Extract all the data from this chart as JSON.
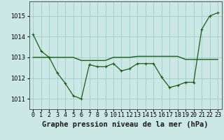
{
  "background_color": "#cce8e4",
  "grid_color": "#9ecec8",
  "line_color": "#1a5c1a",
  "marker_color": "#1a5c1a",
  "title": "Graphe pression niveau de la mer (hPa)",
  "xlim": [
    -0.5,
    23.5
  ],
  "ylim": [
    1010.5,
    1015.7
  ],
  "yticks": [
    1011,
    1012,
    1013,
    1014,
    1015
  ],
  "xtick_labels": [
    "0",
    "1",
    "2",
    "3",
    "4",
    "5",
    "6",
    "7",
    "8",
    "9",
    "10",
    "11",
    "12",
    "13",
    "14",
    "15",
    "16",
    "17",
    "18",
    "19",
    "20",
    "21",
    "22",
    "23"
  ],
  "series1_x": [
    0,
    1,
    2,
    3,
    4,
    5,
    6,
    7,
    8,
    9,
    10,
    11,
    12,
    13,
    14,
    15,
    16,
    17,
    18,
    19,
    20,
    21,
    22,
    23
  ],
  "series1_y": [
    1014.1,
    1013.3,
    1013.0,
    1012.25,
    1011.75,
    1011.15,
    1011.0,
    1012.65,
    1012.55,
    1012.55,
    1012.7,
    1012.35,
    1012.45,
    1012.7,
    1012.7,
    1012.7,
    1012.05,
    1011.55,
    1011.65,
    1011.8,
    1011.8,
    1014.35,
    1015.0,
    1015.15
  ],
  "series2_x": [
    0,
    1,
    2,
    3,
    4,
    5,
    6,
    7,
    8,
    9,
    10,
    11,
    12,
    13,
    14,
    15,
    16,
    17,
    18,
    19,
    20,
    21,
    22,
    23
  ],
  "series2_y": [
    1013.0,
    1013.0,
    1013.0,
    1013.0,
    1013.0,
    1013.0,
    1012.85,
    1012.85,
    1012.85,
    1012.85,
    1013.0,
    1013.0,
    1013.0,
    1013.05,
    1013.05,
    1013.05,
    1013.05,
    1013.05,
    1013.05,
    1012.9,
    1012.9,
    1012.9,
    1012.9,
    1012.9
  ],
  "title_fontsize": 7.5,
  "tick_fontsize": 6.0,
  "title_fontweight": "bold"
}
